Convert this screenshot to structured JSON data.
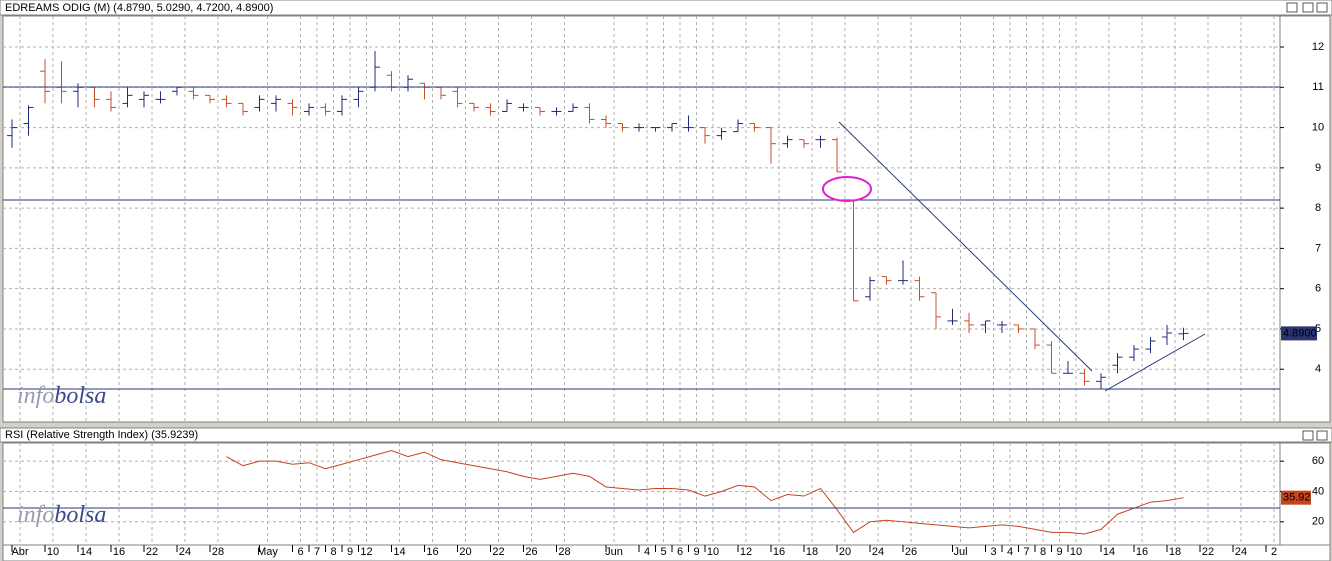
{
  "chart_data": [
    {
      "type": "ohlc",
      "title": "EDREAMS ODIG (M) (4.8790, 5.0290, 4.7200, 4.8900)",
      "watermark": [
        "info",
        "bolsa"
      ],
      "up_color": "#1f2a78",
      "down_color": "#c4502c",
      "open": [
        9.8,
        10.1,
        11.4,
        11.0,
        10.9,
        11.0,
        10.7,
        10.6,
        10.7,
        10.7,
        10.9,
        10.9,
        10.8,
        10.7,
        10.6,
        10.5,
        10.6,
        10.6,
        10.4,
        10.5,
        10.4,
        10.7,
        11.0,
        11.3,
        11.0,
        11.1,
        11.0,
        10.9,
        10.6,
        10.5,
        10.4,
        10.5,
        10.5,
        10.4,
        10.4,
        10.5,
        10.2,
        10.1,
        10.0,
        10.0,
        10.0,
        10.0,
        10.0,
        9.8,
        9.9,
        10.1,
        10.0,
        9.6,
        9.7,
        9.7,
        9.7,
        8.2,
        5.8,
        6.3,
        6.2,
        6.2,
        5.9,
        5.2,
        5.2,
        5.1,
        5.1,
        5.1,
        5.0,
        4.6,
        3.9,
        3.9,
        3.7,
        4.1,
        4.3,
        4.5,
        4.8,
        4.879,
        null,
        null,
        null,
        null,
        null
      ],
      "high": [
        10.2,
        10.55,
        11.7,
        11.65,
        11.1,
        11.0,
        10.9,
        11.0,
        10.9,
        10.9,
        11.0,
        11.0,
        10.8,
        10.8,
        10.6,
        10.8,
        10.8,
        10.7,
        10.6,
        10.6,
        10.8,
        11.0,
        11.9,
        11.4,
        11.3,
        11.1,
        11.0,
        11.0,
        10.6,
        10.6,
        10.7,
        10.6,
        10.5,
        10.5,
        10.6,
        10.6,
        10.3,
        10.1,
        10.1,
        10.0,
        10.1,
        10.3,
        10.0,
        10.0,
        10.2,
        10.1,
        10.0,
        9.8,
        9.7,
        9.8,
        9.75,
        8.2,
        6.3,
        6.3,
        6.7,
        6.3,
        5.9,
        5.5,
        5.4,
        5.2,
        5.2,
        5.1,
        5.0,
        4.7,
        4.2,
        4.0,
        3.9,
        4.4,
        4.6,
        4.8,
        5.1,
        5.029,
        null,
        null,
        null,
        null,
        null
      ],
      "low": [
        9.5,
        9.8,
        10.6,
        10.6,
        10.5,
        10.5,
        10.4,
        10.5,
        10.5,
        10.6,
        10.8,
        10.7,
        10.6,
        10.5,
        10.3,
        10.4,
        10.4,
        10.3,
        10.3,
        10.3,
        10.3,
        10.5,
        10.9,
        10.9,
        10.9,
        10.7,
        10.7,
        10.5,
        10.4,
        10.3,
        10.4,
        10.4,
        10.3,
        10.3,
        10.4,
        10.1,
        10.0,
        9.9,
        9.9,
        9.9,
        9.9,
        9.9,
        9.6,
        9.7,
        9.9,
        9.9,
        9.1,
        9.5,
        9.5,
        9.5,
        8.9,
        5.7,
        5.7,
        6.1,
        6.1,
        5.7,
        5.0,
        5.1,
        4.9,
        4.9,
        4.9,
        4.9,
        4.5,
        3.9,
        3.9,
        3.6,
        3.5,
        3.9,
        4.2,
        4.4,
        4.6,
        4.72,
        null,
        null,
        null,
        null,
        null
      ],
      "close": [
        10.0,
        10.5,
        10.9,
        10.9,
        11.0,
        10.7,
        10.5,
        10.8,
        10.8,
        10.7,
        11.0,
        10.8,
        10.7,
        10.6,
        10.4,
        10.7,
        10.7,
        10.5,
        10.5,
        10.4,
        10.7,
        10.9,
        11.5,
        11.0,
        11.2,
        11.0,
        10.8,
        10.6,
        10.5,
        10.4,
        10.6,
        10.5,
        10.4,
        10.4,
        10.5,
        10.2,
        10.1,
        10.0,
        10.0,
        10.0,
        10.1,
        10.0,
        9.8,
        9.9,
        10.1,
        10.0,
        9.6,
        9.7,
        9.6,
        9.7,
        8.9,
        5.7,
        6.2,
        6.2,
        6.2,
        5.8,
        5.3,
        5.2,
        5.1,
        5.2,
        5.1,
        5.0,
        4.6,
        3.9,
        3.9,
        3.7,
        3.8,
        4.3,
        4.5,
        4.7,
        4.9,
        4.89,
        null,
        null,
        null,
        null,
        null
      ],
      "last_price_label": "4.8900",
      "ylim": [
        2.69,
        12.77
      ],
      "yticks": [
        4,
        5,
        6,
        7,
        8,
        9,
        10,
        11,
        12
      ],
      "grid": true
    },
    {
      "type": "line",
      "title": "RSI (Relative Strength Index) (35.9239)",
      "watermark": [
        "info",
        "bolsa"
      ],
      "categories": [
        "Abr",
        null,
        "10",
        null,
        "14",
        null,
        "16",
        null,
        "22",
        null,
        "24",
        null,
        "28",
        null,
        null,
        "May",
        null,
        "6",
        "7",
        "8",
        "9",
        "12",
        null,
        "14",
        null,
        "16",
        null,
        "20",
        null,
        "22",
        null,
        "26",
        null,
        "28",
        null,
        null,
        "Jun",
        null,
        "4",
        "5",
        "6",
        "9",
        "10",
        null,
        "12",
        null,
        "16",
        null,
        "18",
        null,
        "20",
        null,
        "24",
        null,
        "26",
        null,
        null,
        "Jul",
        null,
        "3",
        "4",
        "7",
        "8",
        "9",
        "10",
        null,
        "14",
        null,
        "16",
        null,
        "18",
        null,
        "22",
        null,
        "24",
        null,
        "2"
      ],
      "color": "#c4441e",
      "values": [
        null,
        null,
        null,
        null,
        null,
        null,
        null,
        null,
        null,
        null,
        null,
        null,
        null,
        63,
        57,
        60,
        60,
        58,
        59,
        55,
        58,
        61,
        64,
        67,
        63,
        66,
        61,
        59,
        57,
        55,
        53,
        50,
        48,
        50,
        52,
        50,
        43,
        42,
        41,
        42,
        42,
        41,
        37,
        40,
        44,
        43,
        34,
        38,
        37,
        42,
        28,
        13,
        20,
        21,
        20,
        19,
        18,
        17,
        16,
        17,
        18,
        17,
        15,
        13,
        13,
        12,
        15,
        25,
        29,
        33,
        34,
        35.92,
        null,
        null,
        null,
        null,
        null
      ],
      "last_value_label": "35.92",
      "ylim": [
        4.7,
        72
      ],
      "yticks": [
        20,
        40,
        60
      ],
      "grid": true
    }
  ]
}
